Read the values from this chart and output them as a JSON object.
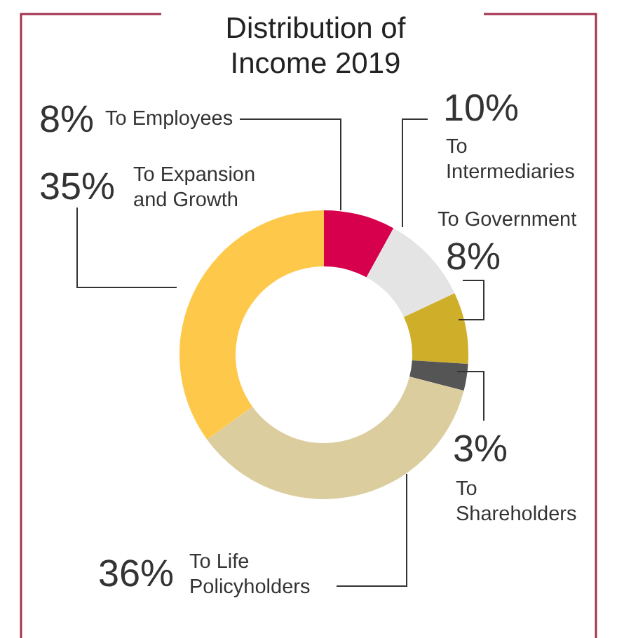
{
  "chart_data": {
    "type": "donut",
    "title": "Distribution of Income 2019",
    "categories": [
      "To Employees",
      "To Intermediaries",
      "To Government",
      "To Shareholders",
      "To Life Policyholders",
      "To Expansion and Growth"
    ],
    "values": [
      8,
      10,
      8,
      3,
      36,
      35
    ],
    "value_labels": [
      "8%",
      "10%",
      "8%",
      "3%",
      "36%",
      "35%"
    ],
    "colors": [
      "#d6004c",
      "#e4e4e4",
      "#cfae2a",
      "#555555",
      "#dccd9f",
      "#fec94b"
    ]
  }
}
